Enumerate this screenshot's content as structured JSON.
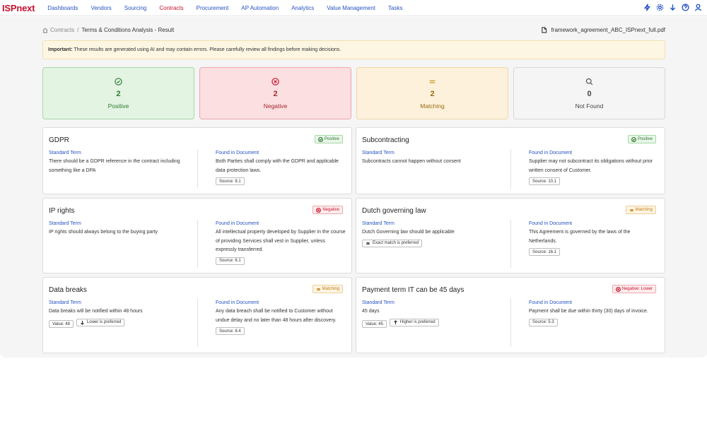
{
  "nav": {
    "logo": "ISPnext",
    "items": [
      {
        "label": "Dashboards",
        "active": false
      },
      {
        "label": "Vendors",
        "active": false
      },
      {
        "label": "Sourcing",
        "active": false
      },
      {
        "label": "Contracts",
        "active": true
      },
      {
        "label": "Procurement",
        "active": false
      },
      {
        "label": "AP Automation",
        "active": false
      },
      {
        "label": "Analytics",
        "active": false
      },
      {
        "label": "Value Management",
        "active": false
      },
      {
        "label": "Tasks",
        "active": false
      }
    ],
    "icons": [
      "lightning-icon",
      "gear-icon",
      "download-icon",
      "help-icon",
      "user-icon"
    ]
  },
  "breadcrumb": {
    "root": "Contracts",
    "separator": "/",
    "current": "Terms & Conditions Analysis - Result"
  },
  "file": {
    "name": "framework_agreement_ABC_ISPnext_full.pdf"
  },
  "alert": {
    "strong": "Important:",
    "text": " These results are generated using AI and may contain errors. Please carefully review all findings before making decisions."
  },
  "stats": [
    {
      "count": "2",
      "label": "Positive",
      "icon": "check-circle-icon"
    },
    {
      "count": "2",
      "label": "Negative",
      "icon": "x-circle-icon"
    },
    {
      "count": "2",
      "label": "Matching",
      "icon": "equals-icon"
    },
    {
      "count": "0",
      "label": "Not Found",
      "icon": "search-icon"
    }
  ],
  "labels": {
    "standard": "Standard Term",
    "found": "Found in Document"
  },
  "cards": [
    {
      "title": "GDPR",
      "badge": "Positive",
      "standard": "There should be a GDPR reference in the contract including something like a DPA",
      "found": "Both Parties shall comply with the GDPR and applicable data protection laws.",
      "source": "Source: 8.1"
    },
    {
      "title": "Subcontracting",
      "badge": "Positive",
      "standard": "Subcontracts cannot happen without consent",
      "found": "Supplier may not subcontract its obligations without prior written consent of Customer.",
      "source": "Source: 10.1"
    },
    {
      "title": "IP rights",
      "badge": "Negative",
      "standard": "IP rights should always belong to the buying party",
      "found": "All intellectual property developed by Supplier in the course of providing Services shall vest in Supplier, unless expressly transferred.",
      "source": "Source: 6.1"
    },
    {
      "title": "Dutch governing law",
      "badge": "Matching",
      "standard": "Dutch Governing law should be applicable",
      "chip1": "Exact match is preferred",
      "found": "This Agreement is governed by the laws of the Netherlands.",
      "source": "Source: 16.1"
    },
    {
      "title": "Data breaks",
      "badge": "Matching",
      "standard": "Data breaks will be notified within 48 hours",
      "chip1": "Value: 48",
      "chip2": "Lower is preferred",
      "found": "Any data breach shall be notified to Customer without undue delay and no later than 48 hours after discovery.",
      "source": "Source: 8.4"
    },
    {
      "title": "Payment term IT can be 45 days",
      "badge": "Negative: Lower",
      "standard": "45 days",
      "chip1": "Value: 45",
      "chip2": "Higher is preferred",
      "found": "Payment shall be due within thirty (30) days of invoice.",
      "source": "Source: 5.3"
    }
  ]
}
